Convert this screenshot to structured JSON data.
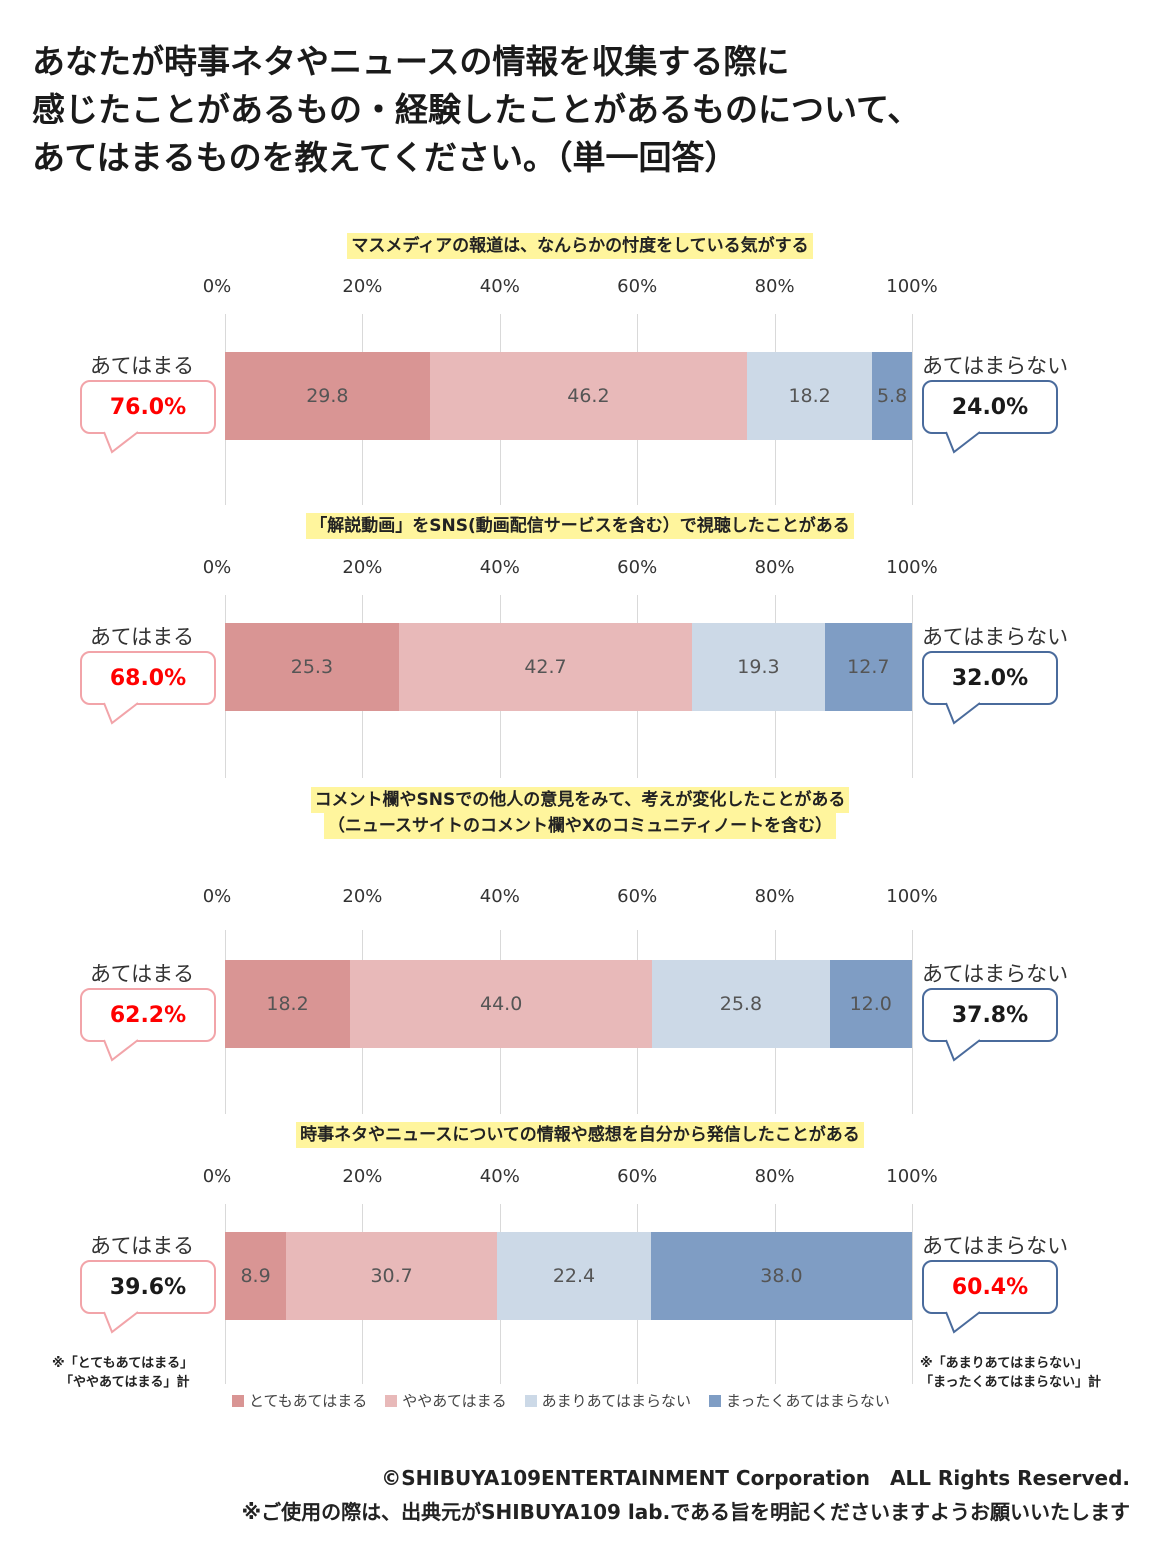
{
  "title_lines": [
    "あなたが時事ネタやニュースの情報を収集する際に",
    "感じたことがあるもの・経験したことがあるものについて、",
    "あてはまるものを教えてください。（単一回答）"
  ],
  "axis_ticks": [
    "0%",
    "20%",
    "40%",
    "60%",
    "80%",
    "100%"
  ],
  "side_labels": {
    "left": "あてはまる",
    "right": "あてはまらない"
  },
  "colors": {
    "very": "#d99594",
    "somewhat": "#e8b9b9",
    "not_much": "#ccd9e7",
    "not_at_all": "#7f9dc4",
    "pink_border": "#f2a4a9",
    "blue_border": "#4a6b9c",
    "highlight_red": "#ff0000",
    "highlight_black": "#1a1a1a"
  },
  "chart_data": {
    "type": "bar",
    "orientation": "horizontal-stacked-100",
    "xlim": [
      0,
      100
    ],
    "series_names": [
      "とてもあてはまる",
      "ややあてはまる",
      "あまりあてはまらない",
      "まったくあてはまらない"
    ],
    "questions": [
      {
        "title_lines": [
          "マスメディアの報道は、なんらかの忖度をしている気がする"
        ],
        "values": [
          29.8,
          46.2,
          18.2,
          5.8
        ],
        "agree_total": "76.0%",
        "disagree_total": "24.0%"
      },
      {
        "title_lines": [
          "「解説動画」をSNS(動画配信サービスを含む）で視聴したことがある"
        ],
        "values": [
          25.3,
          42.7,
          19.3,
          12.7
        ],
        "agree_total": "68.0%",
        "disagree_total": "32.0%"
      },
      {
        "title_lines": [
          "コメント欄やSNSでの他人の意見をみて、考えが変化したことがある",
          "（ニュースサイトのコメント欄やXのコミュニティノートを含む）"
        ],
        "values": [
          18.2,
          44.0,
          25.8,
          12.0
        ],
        "agree_total": "62.2%",
        "disagree_total": "37.8%"
      },
      {
        "title_lines": [
          "時事ネタやニュースについての情報や感想を自分から発信したことがある"
        ],
        "values": [
          8.9,
          30.7,
          22.4,
          38.0
        ],
        "agree_total": "39.6%",
        "disagree_total": "60.4%"
      }
    ]
  },
  "notes": {
    "left": [
      "※「とてもあてはまる」",
      "「ややあてはまる」計"
    ],
    "right": [
      "※「あまりあてはまらない」",
      "「まったくあてはまらない」計"
    ]
  },
  "footer": {
    "copyright": "©SHIBUYA109ENTERTAINMENT Corporation　ALL Rights Reserved.",
    "usage": "※ご使用の際は、出典元がSHIBUYA109 lab.である旨を明記くださいますようお願いいたします"
  }
}
